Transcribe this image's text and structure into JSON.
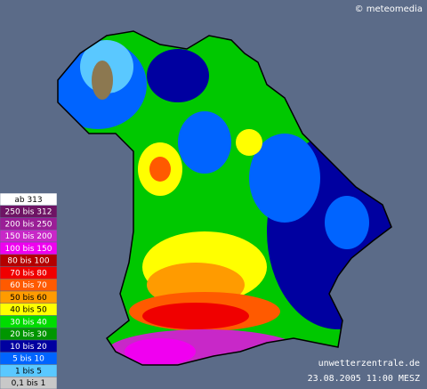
{
  "attribution": "© meteomedia",
  "site": "unwetterzentrale.de",
  "timestamp": "23.08.2005 11:00 MESZ",
  "legend": [
    {
      "label": "ab 313",
      "color": "#ffffff"
    },
    {
      "label": "250 bis 312",
      "color": "#6e1464"
    },
    {
      "label": "200 bis 250",
      "color": "#9a1e96"
    },
    {
      "label": "150 bis 200",
      "color": "#c828c8"
    },
    {
      "label": "100 bis 150",
      "color": "#f000f0"
    },
    {
      "label": "80 bis 100",
      "color": "#b40000"
    },
    {
      "label": "70 bis 80",
      "color": "#f00000"
    },
    {
      "label": "60 bis 70",
      "color": "#ff5a00"
    },
    {
      "label": "50 bis 60",
      "color": "#ff9b00"
    },
    {
      "label": "40 bis 50",
      "color": "#ffff00"
    },
    {
      "label": "30 bis 40",
      "color": "#00dc00"
    },
    {
      "label": "20 bis 30",
      "color": "#009600"
    },
    {
      "label": "10 bis 20",
      "color": "#0000a0"
    },
    {
      "label": "5 bis 10",
      "color": "#0064ff"
    },
    {
      "label": "1 bis 5",
      "color": "#5ac8ff"
    },
    {
      "label": "0,1 bis 1",
      "color": "#c8c8c8"
    }
  ]
}
